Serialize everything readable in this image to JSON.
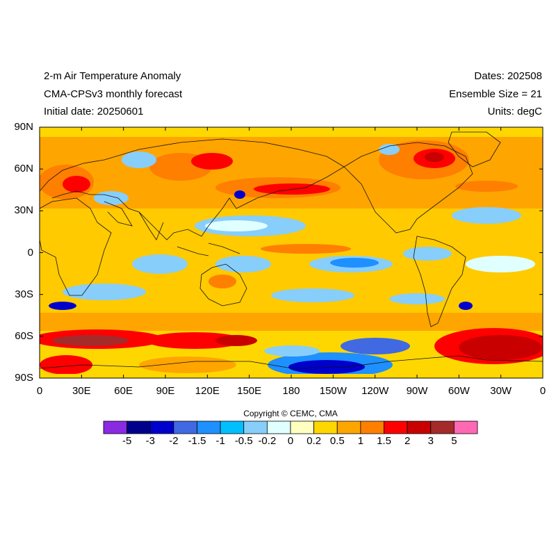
{
  "header": {
    "left": [
      "2-m Air Temperature Anomaly",
      "CMA-CPSv3 monthly forecast",
      "Initial date: 20250601"
    ],
    "right": [
      "Dates: 202508",
      "Ensemble Size = 21",
      "Units: degC"
    ]
  },
  "lat_labels": [
    "90N",
    "60N",
    "30N",
    "0",
    "30S",
    "60S",
    "90S"
  ],
  "lon_labels": [
    "0",
    "30E",
    "60E",
    "90E",
    "120E",
    "150E",
    "180",
    "150W",
    "120W",
    "90W",
    "60W",
    "30W",
    "0"
  ],
  "copyright": "Copyright © CEMC, CMA",
  "colorbar": {
    "colors": [
      "#8a2be2",
      "#00008b",
      "#0000cd",
      "#4169e1",
      "#1e90ff",
      "#00bfff",
      "#87cefa",
      "#e0ffff",
      "#ffffc0",
      "#ffd700",
      "#ffa500",
      "#ff7f00",
      "#ff0000",
      "#c80000",
      "#a52a2a",
      "#ff69b4"
    ],
    "labels": [
      "-5",
      "-3",
      "-2",
      "-1.5",
      "-1",
      "-0.5",
      "-0.2",
      "0",
      "0.2",
      "0.5",
      "1",
      "1.5",
      "2",
      "3",
      "5"
    ]
  },
  "chart_data": {
    "type": "heatmap",
    "title": "2-m Air Temperature Anomaly",
    "subtitle": "CMA-CPSv3 monthly forecast",
    "initial_date": "20250601",
    "dates": "202508",
    "ensemble_size": 21,
    "units": "degC",
    "x_axis": {
      "label": "",
      "range": [
        0,
        360
      ],
      "ticks": [
        "0",
        "30E",
        "60E",
        "90E",
        "120E",
        "150E",
        "180",
        "150W",
        "120W",
        "90W",
        "60W",
        "30W",
        "0"
      ]
    },
    "y_axis": {
      "label": "",
      "range": [
        -90,
        90
      ],
      "ticks": [
        "90N",
        "60N",
        "30N",
        "0",
        "30S",
        "60S",
        "90S"
      ]
    },
    "contour_levels": [
      -5,
      -3,
      -2,
      -1.5,
      -1,
      -0.5,
      -0.2,
      0,
      0.2,
      0.5,
      1,
      1.5,
      2,
      3,
      5
    ]
  }
}
